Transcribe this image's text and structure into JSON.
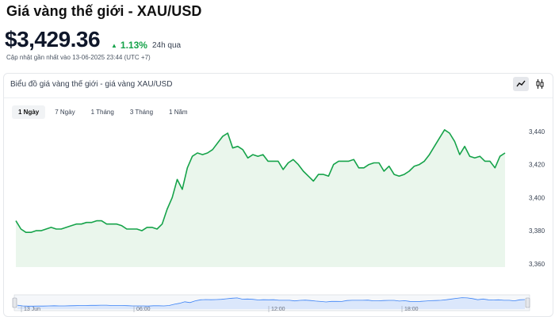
{
  "header": {
    "title": "Giá vàng thế giới - XAU/USD",
    "price": "$3,429.36",
    "change_pct": "1.13%",
    "change_period": "24h qua",
    "updated": "Cập nhật gần nhất vào 13-06-2025 23:44 (UTC +7)"
  },
  "card": {
    "title": "Biểu đồ giá vàng thế giới - giá vàng XAU/USD",
    "chart_type_buttons": [
      "line-chart-icon",
      "candlestick-icon"
    ]
  },
  "tabs": [
    "1 Ngày",
    "7 Ngày",
    "1 Tháng",
    "3 Tháng",
    "1 Năm"
  ],
  "active_tab": "1 Ngày",
  "colors": {
    "line": "#16a34a",
    "fill": "#eaf6ec",
    "up": "#16a34a",
    "nav_line": "#3b82f6"
  },
  "chart_data": {
    "type": "area",
    "series": [
      {
        "values": [
          3386,
          3381,
          3379,
          3379,
          3380,
          3380,
          3381,
          3382,
          3381,
          3381,
          3382,
          3383,
          3384,
          3384,
          3385,
          3385,
          3386,
          3386,
          3384,
          3384,
          3384,
          3383,
          3381,
          3381,
          3381,
          3380,
          3382,
          3382,
          3381,
          3384,
          3393,
          3400,
          3411,
          3405,
          3418,
          3425,
          3427,
          3426,
          3427,
          3429,
          3433,
          3437,
          3439,
          3430,
          3431,
          3429,
          3424,
          3426,
          3425,
          3426,
          3422,
          3422,
          3422,
          3417,
          3421,
          3423,
          3420,
          3416,
          3413,
          3410,
          3414,
          3414,
          3413,
          3420,
          3422,
          3422,
          3422,
          3423,
          3418,
          3418,
          3420,
          3421,
          3421,
          3416,
          3419,
          3414,
          3413,
          3414,
          3416,
          3419,
          3420,
          3422,
          3426,
          3431,
          3436,
          3441,
          3439,
          3434,
          3426,
          3431,
          3425,
          3424,
          3425,
          3422,
          3422,
          3418,
          3425,
          3427
        ]
      }
    ],
    "y_ticks": [
      3360,
      3380,
      3400,
      3420,
      3440
    ],
    "ylim": [
      3358,
      3450
    ],
    "navigator_labels": [
      "13 Jun",
      "06:00",
      "12:00",
      "18:00"
    ],
    "grid": false
  }
}
